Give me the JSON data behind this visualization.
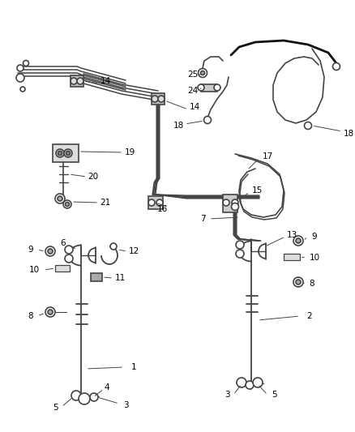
{
  "bg_color": "#ffffff",
  "line_color": "#444444",
  "label_color": "#000000",
  "fig_width": 4.38,
  "fig_height": 5.33,
  "dpi": 100
}
